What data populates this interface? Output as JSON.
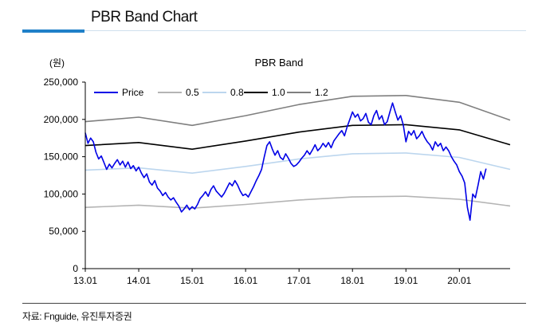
{
  "header": {
    "title": "PBR Band Chart"
  },
  "footer": {
    "source": "자료: Fnguide, 유진투자증권"
  },
  "colors": {
    "accent": "#1f80c8",
    "price": "#0000e6",
    "band_05": "#b4b4b4",
    "band_08": "#bcd6ee",
    "band_10": "#000000",
    "band_12": "#7f7f7f"
  },
  "chart_data": {
    "type": "line",
    "title": "PBR Band",
    "ylabel": "(원)",
    "ylim": [
      0,
      250000
    ],
    "yticks": [
      0,
      50000,
      100000,
      150000,
      200000,
      250000
    ],
    "ytick_labels": [
      "0",
      "50,000",
      "100,000",
      "150,000",
      "200,000",
      "250,000"
    ],
    "xlim": [
      2013.0,
      2020.95
    ],
    "xticks": [
      2013,
      2014,
      2015,
      2016,
      2017,
      2018,
      2019,
      2020
    ],
    "xtick_labels": [
      "13.01",
      "14.01",
      "15.01",
      "16.01",
      "17.01",
      "18.01",
      "19.01",
      "20.01"
    ],
    "legend_position": "top-left",
    "grid": false,
    "series": [
      {
        "name": "Price",
        "color": "#0000e6",
        "width": 1.6,
        "points": [
          [
            2013.0,
            182000
          ],
          [
            2013.05,
            168000
          ],
          [
            2013.1,
            175000
          ],
          [
            2013.15,
            170000
          ],
          [
            2013.2,
            156000
          ],
          [
            2013.25,
            147000
          ],
          [
            2013.3,
            151000
          ],
          [
            2013.35,
            142000
          ],
          [
            2013.4,
            133000
          ],
          [
            2013.45,
            140000
          ],
          [
            2013.5,
            135000
          ],
          [
            2013.55,
            141000
          ],
          [
            2013.6,
            146000
          ],
          [
            2013.65,
            139000
          ],
          [
            2013.7,
            144000
          ],
          [
            2013.75,
            136000
          ],
          [
            2013.8,
            143000
          ],
          [
            2013.85,
            134000
          ],
          [
            2013.9,
            138000
          ],
          [
            2013.95,
            131000
          ],
          [
            2014.0,
            136000
          ],
          [
            2014.05,
            128000
          ],
          [
            2014.1,
            122000
          ],
          [
            2014.15,
            127000
          ],
          [
            2014.2,
            116000
          ],
          [
            2014.25,
            112000
          ],
          [
            2014.3,
            118000
          ],
          [
            2014.35,
            108000
          ],
          [
            2014.4,
            104000
          ],
          [
            2014.45,
            98000
          ],
          [
            2014.5,
            102000
          ],
          [
            2014.55,
            96000
          ],
          [
            2014.6,
            92000
          ],
          [
            2014.65,
            95000
          ],
          [
            2014.7,
            89000
          ],
          [
            2014.75,
            84000
          ],
          [
            2014.8,
            76000
          ],
          [
            2014.85,
            80000
          ],
          [
            2014.9,
            85000
          ],
          [
            2014.95,
            79000
          ],
          [
            2015.0,
            83000
          ],
          [
            2015.05,
            80000
          ],
          [
            2015.1,
            86000
          ],
          [
            2015.15,
            94000
          ],
          [
            2015.2,
            98000
          ],
          [
            2015.25,
            103000
          ],
          [
            2015.3,
            97000
          ],
          [
            2015.35,
            106000
          ],
          [
            2015.4,
            111000
          ],
          [
            2015.45,
            104000
          ],
          [
            2015.5,
            100000
          ],
          [
            2015.55,
            96000
          ],
          [
            2015.6,
            101000
          ],
          [
            2015.65,
            108000
          ],
          [
            2015.7,
            115000
          ],
          [
            2015.75,
            111000
          ],
          [
            2015.8,
            118000
          ],
          [
            2015.85,
            112000
          ],
          [
            2015.9,
            104000
          ],
          [
            2015.95,
            98000
          ],
          [
            2016.0,
            100000
          ],
          [
            2016.05,
            96000
          ],
          [
            2016.1,
            103000
          ],
          [
            2016.15,
            110000
          ],
          [
            2016.2,
            118000
          ],
          [
            2016.25,
            125000
          ],
          [
            2016.3,
            133000
          ],
          [
            2016.35,
            150000
          ],
          [
            2016.4,
            165000
          ],
          [
            2016.45,
            170000
          ],
          [
            2016.5,
            160000
          ],
          [
            2016.55,
            152000
          ],
          [
            2016.6,
            158000
          ],
          [
            2016.65,
            149000
          ],
          [
            2016.7,
            146000
          ],
          [
            2016.75,
            154000
          ],
          [
            2016.8,
            148000
          ],
          [
            2016.85,
            141000
          ],
          [
            2016.9,
            137000
          ],
          [
            2016.95,
            139000
          ],
          [
            2017.0,
            143000
          ],
          [
            2017.05,
            148000
          ],
          [
            2017.1,
            152000
          ],
          [
            2017.15,
            158000
          ],
          [
            2017.2,
            153000
          ],
          [
            2017.25,
            159000
          ],
          [
            2017.3,
            166000
          ],
          [
            2017.35,
            158000
          ],
          [
            2017.4,
            162000
          ],
          [
            2017.45,
            168000
          ],
          [
            2017.5,
            163000
          ],
          [
            2017.55,
            169000
          ],
          [
            2017.6,
            162000
          ],
          [
            2017.65,
            171000
          ],
          [
            2017.7,
            176000
          ],
          [
            2017.75,
            181000
          ],
          [
            2017.8,
            185000
          ],
          [
            2017.85,
            178000
          ],
          [
            2017.9,
            190000
          ],
          [
            2017.95,
            200000
          ],
          [
            2018.0,
            210000
          ],
          [
            2018.05,
            203000
          ],
          [
            2018.1,
            207000
          ],
          [
            2018.15,
            198000
          ],
          [
            2018.2,
            201000
          ],
          [
            2018.25,
            208000
          ],
          [
            2018.3,
            196000
          ],
          [
            2018.35,
            193000
          ],
          [
            2018.4,
            205000
          ],
          [
            2018.45,
            212000
          ],
          [
            2018.5,
            200000
          ],
          [
            2018.55,
            205000
          ],
          [
            2018.6,
            193000
          ],
          [
            2018.65,
            197000
          ],
          [
            2018.7,
            210000
          ],
          [
            2018.75,
            222000
          ],
          [
            2018.8,
            210000
          ],
          [
            2018.85,
            199000
          ],
          [
            2018.9,
            205000
          ],
          [
            2018.95,
            193000
          ],
          [
            2019.0,
            170000
          ],
          [
            2019.05,
            184000
          ],
          [
            2019.1,
            179000
          ],
          [
            2019.15,
            185000
          ],
          [
            2019.2,
            174000
          ],
          [
            2019.25,
            178000
          ],
          [
            2019.3,
            184000
          ],
          [
            2019.35,
            176000
          ],
          [
            2019.4,
            170000
          ],
          [
            2019.45,
            166000
          ],
          [
            2019.5,
            159000
          ],
          [
            2019.55,
            170000
          ],
          [
            2019.6,
            164000
          ],
          [
            2019.65,
            168000
          ],
          [
            2019.7,
            158000
          ],
          [
            2019.75,
            163000
          ],
          [
            2019.8,
            158000
          ],
          [
            2019.85,
            150000
          ],
          [
            2019.9,
            144000
          ],
          [
            2019.95,
            139000
          ],
          [
            2020.0,
            130000
          ],
          [
            2020.05,
            124000
          ],
          [
            2020.1,
            115000
          ],
          [
            2020.15,
            82000
          ],
          [
            2020.2,
            65000
          ],
          [
            2020.25,
            100000
          ],
          [
            2020.3,
            95000
          ],
          [
            2020.35,
            112000
          ],
          [
            2020.4,
            130000
          ],
          [
            2020.45,
            120000
          ],
          [
            2020.5,
            134000
          ]
        ]
      },
      {
        "name": "0.5",
        "color": "#b4b4b4",
        "width": 1.6,
        "points": [
          [
            2013.0,
            82000
          ],
          [
            2014.0,
            85000
          ],
          [
            2015.0,
            81000
          ],
          [
            2016.0,
            86000
          ],
          [
            2017.0,
            92000
          ],
          [
            2018.0,
            96000
          ],
          [
            2019.0,
            97000
          ],
          [
            2020.0,
            93000
          ],
          [
            2020.95,
            84000
          ]
        ]
      },
      {
        "name": "0.8",
        "color": "#bcd6ee",
        "width": 1.6,
        "points": [
          [
            2013.0,
            132000
          ],
          [
            2014.0,
            135000
          ],
          [
            2015.0,
            128000
          ],
          [
            2016.0,
            137000
          ],
          [
            2017.0,
            147000
          ],
          [
            2018.0,
            154000
          ],
          [
            2019.0,
            155000
          ],
          [
            2020.0,
            149000
          ],
          [
            2020.95,
            133000
          ]
        ]
      },
      {
        "name": "1.0",
        "color": "#000000",
        "width": 1.6,
        "points": [
          [
            2013.0,
            165000
          ],
          [
            2014.0,
            169000
          ],
          [
            2015.0,
            160000
          ],
          [
            2016.0,
            171000
          ],
          [
            2017.0,
            183000
          ],
          [
            2018.0,
            192000
          ],
          [
            2019.0,
            193000
          ],
          [
            2020.0,
            186000
          ],
          [
            2020.95,
            166000
          ]
        ]
      },
      {
        "name": "1.2",
        "color": "#7f7f7f",
        "width": 1.6,
        "points": [
          [
            2013.0,
            197000
          ],
          [
            2014.0,
            203000
          ],
          [
            2015.0,
            192000
          ],
          [
            2016.0,
            205000
          ],
          [
            2017.0,
            220000
          ],
          [
            2018.0,
            231000
          ],
          [
            2019.0,
            232000
          ],
          [
            2020.0,
            223000
          ],
          [
            2020.95,
            199000
          ]
        ]
      }
    ]
  }
}
